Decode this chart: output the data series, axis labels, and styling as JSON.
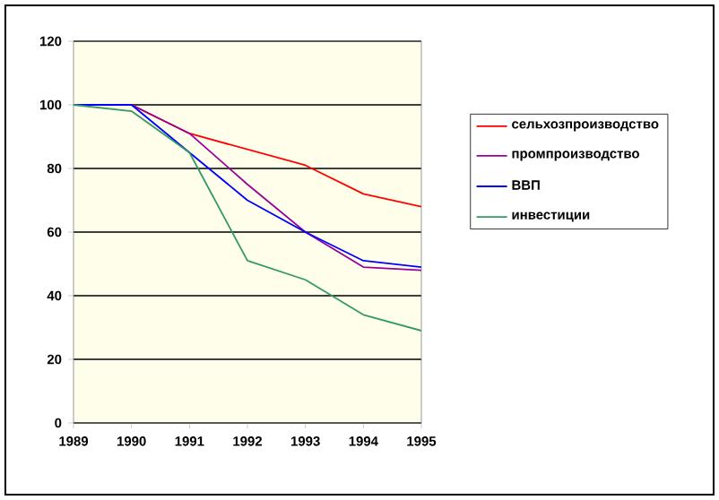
{
  "chart_data": {
    "type": "line",
    "x": [
      1989,
      1990,
      1991,
      1992,
      1993,
      1994,
      1995
    ],
    "xlim": [
      1989,
      1995
    ],
    "xticks": [
      1989,
      1990,
      1991,
      1992,
      1993,
      1994,
      1995
    ],
    "ylim": [
      0,
      120
    ],
    "yticks": [
      0,
      20,
      40,
      60,
      80,
      100,
      120
    ],
    "grid": "y",
    "legend": "right",
    "series": [
      {
        "name": "сельхозпроизводство",
        "color": "#ff0000",
        "values": [
          100,
          100,
          91,
          86,
          81,
          72,
          68
        ]
      },
      {
        "name": "промпроизводство",
        "color": "#990099",
        "values": [
          100,
          100,
          91,
          75,
          60,
          49,
          48
        ]
      },
      {
        "name": "ВВП",
        "color": "#0000ff",
        "values": [
          100,
          100,
          85,
          70,
          60,
          51,
          49
        ]
      },
      {
        "name": "инвестиции",
        "color": "#339966",
        "values": [
          100,
          98,
          85,
          51,
          45,
          34,
          29
        ]
      }
    ]
  }
}
